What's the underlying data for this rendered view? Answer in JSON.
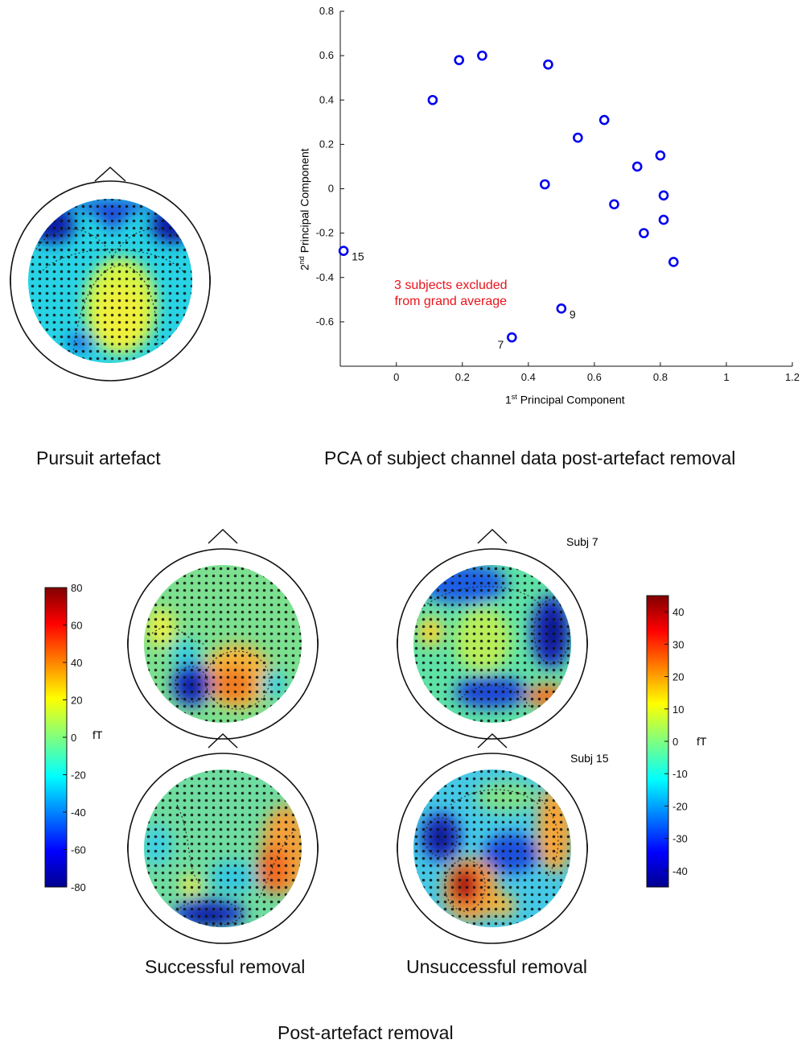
{
  "captions": {
    "pursuit": "Pursuit artefact",
    "pca": "PCA of subject channel data post-artefact removal",
    "successful": "Successful removal",
    "unsuccessful": "Unsuccessful removal",
    "post": "Post-artefact removal"
  },
  "labels": {
    "subj7": "Subj 7",
    "subj15": "Subj 15"
  },
  "chart_data": {
    "type": "scatter",
    "xlabel_sup": "st",
    "xlabel_pre": "1",
    "xlabel_rest": "Principal Component",
    "ylabel_sup": "nd",
    "ylabel_pre": "2",
    "ylabel_rest": "Principal Component",
    "xlim": [
      -0.17,
      1.2
    ],
    "ylim": [
      -0.8,
      0.8
    ],
    "xticks": [
      "0",
      "0.2",
      "0.4",
      "0.6",
      "0.8",
      "1",
      "1.2"
    ],
    "xtick_vals": [
      0,
      0.2,
      0.4,
      0.6,
      0.8,
      1,
      1.2
    ],
    "yticks": [
      "0.8",
      "0.6",
      "0.4",
      "0.2",
      "0",
      "-0.2",
      "-0.4",
      "-0.6"
    ],
    "ytick_vals": [
      0.8,
      0.6,
      0.4,
      0.2,
      0,
      -0.2,
      -0.4,
      -0.6
    ],
    "marker_color": "#0000ee",
    "annotation_color": "#e8141b",
    "annotation_line1": "3 subjects excluded",
    "annotation_line2": "from grand average",
    "points": [
      {
        "x": 0.26,
        "y": 0.6
      },
      {
        "x": 0.19,
        "y": 0.58
      },
      {
        "x": 0.46,
        "y": 0.56
      },
      {
        "x": 0.11,
        "y": 0.4
      },
      {
        "x": 0.63,
        "y": 0.31
      },
      {
        "x": 0.55,
        "y": 0.23
      },
      {
        "x": 0.8,
        "y": 0.15
      },
      {
        "x": 0.73,
        "y": 0.1
      },
      {
        "x": 0.45,
        "y": 0.02
      },
      {
        "x": 0.81,
        "y": -0.03
      },
      {
        "x": 0.66,
        "y": -0.07
      },
      {
        "x": 0.81,
        "y": -0.14
      },
      {
        "x": 0.75,
        "y": -0.2
      },
      {
        "x": 0.84,
        "y": -0.33
      },
      {
        "x": -0.16,
        "y": -0.28,
        "label": "15"
      },
      {
        "x": 0.5,
        "y": -0.54,
        "label": "9"
      },
      {
        "x": 0.35,
        "y": -0.67,
        "label": "7"
      }
    ]
  },
  "colorbar_left": {
    "unit": "fT",
    "ticks": [
      "80",
      "60",
      "40",
      "20",
      "0",
      "-20",
      "-40",
      "-60",
      "-80"
    ],
    "tick_vals": [
      80,
      60,
      40,
      20,
      0,
      -20,
      -40,
      -60,
      -80
    ],
    "range": [
      -80,
      80
    ]
  },
  "colorbar_right": {
    "unit": "fT",
    "ticks": [
      "40",
      "30",
      "20",
      "10",
      "0",
      "-10",
      "-20",
      "-30",
      "-40"
    ],
    "tick_vals": [
      40,
      30,
      20,
      10,
      0,
      -10,
      -20,
      -30,
      -40
    ],
    "range": [
      -45,
      45
    ]
  }
}
